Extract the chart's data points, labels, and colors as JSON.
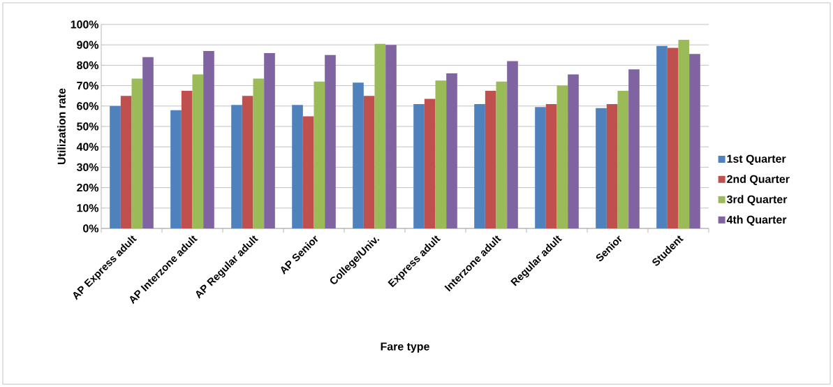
{
  "chart_data": {
    "type": "bar",
    "xlabel": "Fare type",
    "ylabel": "Utilization rate",
    "categories": [
      "AP Express adult",
      "AP Interzone adult",
      "AP Regular adult",
      "AP Senior",
      "College/Univ.",
      "Express adult",
      "Interzone adult",
      "Regular adult",
      "Senior",
      "Student"
    ],
    "series": [
      {
        "name": "1st Quarter",
        "color": "#4f81bd",
        "values": [
          60,
          58,
          60.5,
          60.5,
          71.5,
          61,
          61,
          59.5,
          59,
          89.5
        ]
      },
      {
        "name": "2nd Quarter",
        "color": "#c0504d",
        "values": [
          65,
          67.5,
          65,
          55,
          65,
          63.5,
          67.5,
          61,
          61,
          88.5
        ]
      },
      {
        "name": "3rd Quarter",
        "color": "#9bbb59",
        "values": [
          73.5,
          75.5,
          73.5,
          72,
          90.5,
          72.5,
          72,
          70,
          67.5,
          92.5
        ]
      },
      {
        "name": "4th Quarter",
        "color": "#8064a2",
        "values": [
          84,
          87,
          86,
          85,
          90,
          76,
          82,
          75.5,
          78,
          85.5
        ]
      }
    ],
    "ylim": [
      0,
      100
    ],
    "yticks": [
      {
        "value": 0,
        "label": "0%"
      },
      {
        "value": 10,
        "label": "10%"
      },
      {
        "value": 20,
        "label": "20%"
      },
      {
        "value": 30,
        "label": "30%"
      },
      {
        "value": 40,
        "label": "40%"
      },
      {
        "value": 50,
        "label": "50%"
      },
      {
        "value": 60,
        "label": "60%"
      },
      {
        "value": 70,
        "label": "70%"
      },
      {
        "value": 80,
        "label": "80%"
      },
      {
        "value": 90,
        "label": "90%"
      },
      {
        "value": 100,
        "label": "100%"
      }
    ],
    "grid": "y",
    "legend": "right"
  }
}
